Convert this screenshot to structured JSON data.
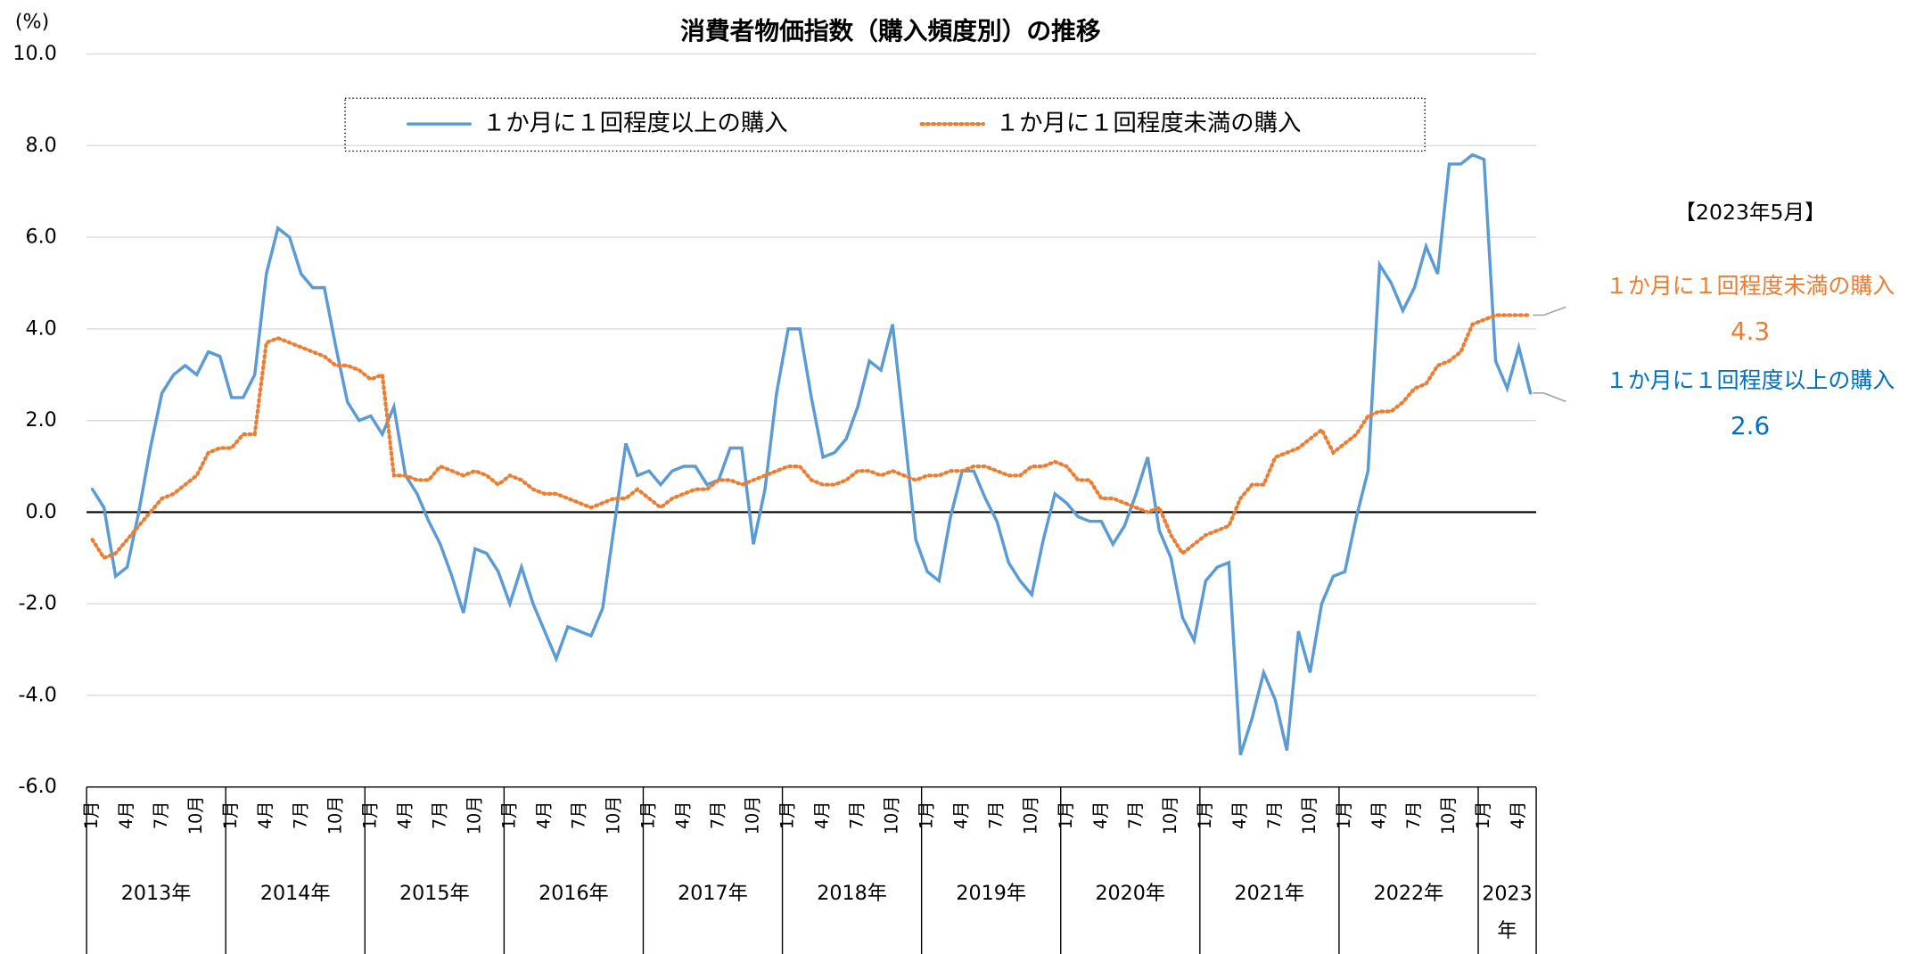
{
  "chart_data": {
    "type": "line",
    "title": "消費者物価指数（購入頻度別）の推移",
    "y_label": "(%)",
    "ylim": [
      -6,
      10
    ],
    "yticks": [
      {
        "value": -6,
        "label": "-6.0"
      },
      {
        "value": -4,
        "label": "-4.0"
      },
      {
        "value": -2,
        "label": "-2.0"
      },
      {
        "value": 0,
        "label": "0.0"
      },
      {
        "value": 2,
        "label": "2.0"
      },
      {
        "value": 4,
        "label": "4.0"
      },
      {
        "value": 6,
        "label": "6.0"
      },
      {
        "value": 8,
        "label": "8.0"
      },
      {
        "value": 10,
        "label": "10.0"
      }
    ],
    "grid": true,
    "categories": [
      "1月",
      null,
      null,
      "4月",
      null,
      null,
      "7月",
      null,
      null,
      "10月",
      null,
      null,
      "1月",
      null,
      null,
      "4月",
      null,
      null,
      "7月",
      null,
      null,
      "10月",
      null,
      null,
      "1月",
      null,
      null,
      "4月",
      null,
      null,
      "7月",
      null,
      null,
      "10月",
      null,
      null,
      "1月",
      null,
      null,
      "4月",
      null,
      null,
      "7月",
      null,
      null,
      "10月",
      null,
      null,
      "1月",
      null,
      null,
      "4月",
      null,
      null,
      "7月",
      null,
      null,
      "10月",
      null,
      null,
      "1月",
      null,
      null,
      "4月",
      null,
      null,
      "7月",
      null,
      null,
      "10月",
      null,
      null,
      "1月",
      null,
      null,
      "4月",
      null,
      null,
      "7月",
      null,
      null,
      "10月",
      null,
      null,
      "1月",
      null,
      null,
      "4月",
      null,
      null,
      "7月",
      null,
      null,
      "10月",
      null,
      null,
      "1月",
      null,
      null,
      "4月",
      null,
      null,
      "7月",
      null,
      null,
      "10月",
      null,
      null,
      "1月",
      null,
      null,
      "4月",
      null,
      null,
      "7月",
      null,
      null,
      "10月",
      null,
      null,
      "1月",
      null,
      null,
      "4月",
      null
    ],
    "year_labels": [
      "2013年",
      "2014年",
      "2015年",
      "2016年",
      "2017年",
      "2018年",
      "2019年",
      "2020年",
      "2021年",
      "2022年",
      "2023年"
    ],
    "series": [
      {
        "name": "１か月に１回程度以上の購入",
        "color": "#5b9bd5",
        "style": "solid",
        "label_color": "#0070c0",
        "values": [
          0.5,
          0.1,
          -1.4,
          -1.2,
          0.0,
          1.4,
          2.6,
          3.0,
          3.2,
          3.0,
          3.5,
          3.4,
          2.5,
          2.5,
          3.0,
          5.2,
          6.2,
          6.0,
          5.2,
          4.9,
          4.9,
          3.6,
          2.4,
          2.0,
          2.1,
          1.7,
          2.3,
          0.8,
          0.4,
          -0.2,
          -0.7,
          -1.4,
          -2.2,
          -0.8,
          -0.9,
          -1.3,
          -2.0,
          -1.2,
          -2.0,
          -2.6,
          -3.2,
          -2.5,
          -2.6,
          -2.7,
          -2.1,
          -0.3,
          1.5,
          0.8,
          0.9,
          0.6,
          0.9,
          1.0,
          1.0,
          0.6,
          0.7,
          1.4,
          1.4,
          -0.7,
          0.5,
          2.6,
          4.0,
          4.0,
          2.5,
          1.2,
          1.3,
          1.6,
          2.3,
          3.3,
          3.1,
          4.1,
          1.8,
          -0.6,
          -1.3,
          -1.5,
          -0.1,
          0.9,
          0.9,
          0.3,
          -0.2,
          -1.1,
          -1.5,
          -1.8,
          -0.6,
          0.4,
          0.2,
          -0.1,
          -0.2,
          -0.2,
          -0.7,
          -0.3,
          0.4,
          1.2,
          -0.4,
          -1.0,
          -2.3,
          -2.8,
          -1.5,
          -1.2,
          -1.1,
          -5.3,
          -4.5,
          -3.5,
          -4.1,
          -5.2,
          -2.6,
          -3.5,
          -2.0,
          -1.4,
          -1.3,
          -0.1,
          0.9,
          5.4,
          5.0,
          4.4,
          4.9,
          5.8,
          5.2,
          7.6,
          7.6,
          7.8,
          7.7,
          3.3,
          2.7,
          3.6,
          2.6
        ]
      },
      {
        "name": "１か月に１回程度未満の購入",
        "color": "#ed7d31",
        "style": "dotted",
        "label_color": "#ed7d31",
        "values": [
          -0.6,
          -1.0,
          -0.9,
          -0.6,
          -0.3,
          0.0,
          0.3,
          0.4,
          0.6,
          0.8,
          1.3,
          1.4,
          1.4,
          1.7,
          1.7,
          3.7,
          3.8,
          3.7,
          3.6,
          3.5,
          3.4,
          3.2,
          3.2,
          3.1,
          2.9,
          3.0,
          0.8,
          0.8,
          0.7,
          0.7,
          1.0,
          0.9,
          0.8,
          0.9,
          0.8,
          0.6,
          0.8,
          0.7,
          0.5,
          0.4,
          0.4,
          0.3,
          0.2,
          0.1,
          0.2,
          0.3,
          0.3,
          0.5,
          0.3,
          0.1,
          0.3,
          0.4,
          0.5,
          0.5,
          0.7,
          0.7,
          0.6,
          0.7,
          0.8,
          0.9,
          1.0,
          1.0,
          0.7,
          0.6,
          0.6,
          0.7,
          0.9,
          0.9,
          0.8,
          0.9,
          0.8,
          0.7,
          0.8,
          0.8,
          0.9,
          0.9,
          1.0,
          1.0,
          0.9,
          0.8,
          0.8,
          1.0,
          1.0,
          1.1,
          1.0,
          0.7,
          0.7,
          0.3,
          0.3,
          0.2,
          0.1,
          0.0,
          0.1,
          -0.5,
          -0.9,
          -0.7,
          -0.5,
          -0.4,
          -0.3,
          0.3,
          0.6,
          0.6,
          1.2,
          1.3,
          1.4,
          1.6,
          1.8,
          1.3,
          1.5,
          1.7,
          2.1,
          2.2,
          2.2,
          2.4,
          2.7,
          2.8,
          3.2,
          3.3,
          3.5,
          4.1,
          4.2,
          4.3,
          4.3,
          4.3,
          4.3
        ]
      }
    ],
    "annotation_title": "【2023年5月】"
  }
}
